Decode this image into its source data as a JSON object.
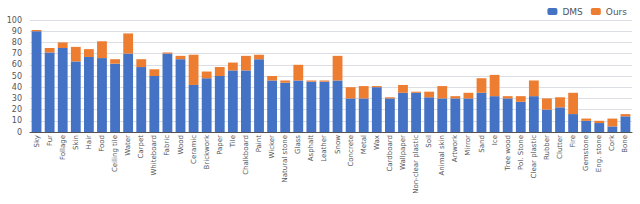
{
  "chart_data": {
    "type": "bar",
    "categories": [
      "Sky",
      "Fur",
      "Follage",
      "Skin",
      "Hair",
      "Food",
      "Ceiling tile",
      "Water",
      "Carpet",
      "Whiteboard",
      "Fabric",
      "Wood",
      "Ceramic",
      "Brickwork",
      "Paper",
      "Tile",
      "Chalkboard",
      "Paint",
      "Wicker",
      "Natural stone",
      "Glass",
      "Asphalt",
      "Leather",
      "Snow",
      "Concrete",
      "Metal",
      "Wax",
      "Cardboard",
      "Wallpaper",
      "Non-clear plastic",
      "Soil",
      "Animal skin",
      "Artwork",
      "Mirror",
      "Sand",
      "Ice",
      "Tree wood",
      "Pol. Stone",
      "Clear plastic",
      "Rubber",
      "Clutter",
      "Fire",
      "Gemstone",
      "Eng. stone",
      "Cork",
      "Bone"
    ],
    "series": [
      {
        "name": "DMS",
        "color": "#4472c4",
        "values": [
          90,
          71,
          75,
          63,
          67,
          66,
          61,
          70,
          58,
          50,
          70,
          65,
          42,
          48,
          50,
          55,
          55,
          65,
          46,
          44,
          46,
          45,
          45,
          46,
          30,
          30,
          40,
          30,
          35,
          35,
          31,
          30,
          30,
          30,
          35,
          32,
          30,
          27,
          32,
          20,
          22,
          16,
          10,
          8,
          5,
          14
        ]
      },
      {
        "name": "Ours",
        "color": "#ed7d31",
        "values": [
          1,
          4,
          5,
          13,
          7,
          15,
          4,
          18,
          7,
          6,
          1,
          3,
          27,
          6,
          8,
          7,
          13,
          4,
          4,
          2,
          14,
          1,
          1,
          22,
          10,
          11,
          1,
          1,
          7,
          1,
          5,
          11,
          2,
          5,
          13,
          19,
          2,
          5,
          14,
          10,
          9,
          19,
          2,
          2,
          7,
          2
        ]
      }
    ],
    "stacked": true,
    "ylim": [
      0,
      100
    ],
    "yticks": [
      0,
      10,
      20,
      30,
      40,
      50,
      60,
      70,
      80,
      90,
      100
    ],
    "grid": true,
    "legend": "upper right"
  }
}
